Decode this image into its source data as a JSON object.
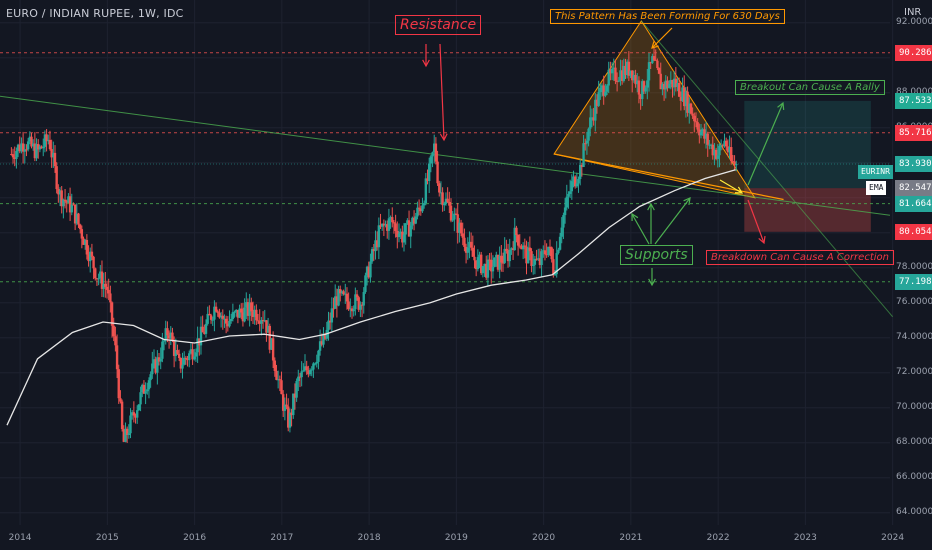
{
  "header": {
    "title": "EURO / INDIAN RUPEE, 1W, IDC",
    "currency": "INR"
  },
  "annotations": {
    "resistance": "Resistance",
    "pattern": "This Pattern Has Been Forming For 630 Days",
    "rally": "Breakout Can Cause A Rally",
    "supports": "Supports",
    "correction": "Breakdown Can Cause A Correction"
  },
  "price_tags": [
    {
      "label": "90.2866",
      "color": "#f23645"
    },
    {
      "label": "87.5339",
      "color": "#22ab94"
    },
    {
      "label": "85.7160",
      "color": "#f23645"
    },
    {
      "label": "83.9307",
      "color": "#26a69a"
    },
    {
      "label": "82.5477",
      "color": "#787b86"
    },
    {
      "label": "81.6647",
      "color": "#26a69a"
    },
    {
      "label": "80.0546",
      "color": "#f23645"
    },
    {
      "label": "77.1980",
      "color": "#26a69a"
    }
  ],
  "symbol_tag": "EURINR",
  "ema_tag": "EMA",
  "colors": {
    "background": "#131722",
    "up": "#26a69a",
    "down": "#ef5350",
    "ema": "#e6e6e6",
    "resistance_line": "#ef5350",
    "support_line": "#4caf50",
    "pattern": "#ff9800",
    "trendline": "#4caf50"
  },
  "chart_data": {
    "type": "candlestick",
    "title": "EURO / INDIAN RUPEE, 1W, IDC",
    "x_ticks": [
      "2014",
      "2015",
      "2016",
      "2017",
      "2018",
      "2019",
      "2020",
      "2021",
      "2022",
      "2023",
      "2024"
    ],
    "y_ticks": [
      "92.0000",
      "90.0000",
      "88.0000",
      "86.0000",
      "84.0000",
      "82.0000",
      "80.0000",
      "78.0000",
      "76.0000",
      "74.0000",
      "72.0000",
      "70.0000",
      "68.0000",
      "66.0000",
      "64.0000"
    ],
    "ylim": [
      63.3,
      93.3
    ],
    "xlim": [
      2013.85,
      2024.05
    ],
    "last_price": 83.9307,
    "horizontal_levels": [
      {
        "value": 90.2866,
        "style": "dashed",
        "color": "#ef5350"
      },
      {
        "value": 85.716,
        "style": "dashed",
        "color": "#ef5350"
      },
      {
        "value": 81.6647,
        "style": "dashed",
        "color": "#4caf50"
      },
      {
        "value": 77.198,
        "style": "dashed",
        "color": "#4caf50"
      }
    ],
    "close_path": [
      [
        2013.9,
        84.5
      ],
      [
        2014.05,
        85.2
      ],
      [
        2014.2,
        84.6
      ],
      [
        2014.33,
        85.4
      ],
      [
        2014.45,
        82.2
      ],
      [
        2014.6,
        81.4
      ],
      [
        2014.75,
        79.4
      ],
      [
        2014.88,
        77.6
      ],
      [
        2015.0,
        76.8
      ],
      [
        2015.1,
        73.0
      ],
      [
        2015.18,
        67.9
      ],
      [
        2015.3,
        69.6
      ],
      [
        2015.45,
        71.5
      ],
      [
        2015.58,
        72.7
      ],
      [
        2015.7,
        74.5
      ],
      [
        2015.82,
        72.4
      ],
      [
        2015.95,
        73.1
      ],
      [
        2016.1,
        74.3
      ],
      [
        2016.25,
        76.0
      ],
      [
        2016.35,
        74.8
      ],
      [
        2016.5,
        75.4
      ],
      [
        2016.65,
        75.6
      ],
      [
        2016.8,
        75.2
      ],
      [
        2016.9,
        73.0
      ],
      [
        2017.0,
        70.5
      ],
      [
        2017.08,
        69.1
      ],
      [
        2017.18,
        71.5
      ],
      [
        2017.35,
        72.6
      ],
      [
        2017.5,
        74.0
      ],
      [
        2017.62,
        76.3
      ],
      [
        2017.75,
        76.1
      ],
      [
        2017.9,
        76.0
      ],
      [
        2018.0,
        78.0
      ],
      [
        2018.12,
        80.1
      ],
      [
        2018.25,
        80.7
      ],
      [
        2018.38,
        79.8
      ],
      [
        2018.5,
        80.6
      ],
      [
        2018.6,
        81.6
      ],
      [
        2018.68,
        83.2
      ],
      [
        2018.75,
        85.0
      ],
      [
        2018.8,
        82.5
      ],
      [
        2018.9,
        81.6
      ],
      [
        2019.0,
        80.6
      ],
      [
        2019.1,
        79.5
      ],
      [
        2019.2,
        78.5
      ],
      [
        2019.35,
        77.9
      ],
      [
        2019.5,
        78.4
      ],
      [
        2019.6,
        78.8
      ],
      [
        2019.68,
        80.0
      ],
      [
        2019.8,
        78.7
      ],
      [
        2019.95,
        78.2
      ],
      [
        2020.05,
        79.3
      ],
      [
        2020.12,
        77.8
      ],
      [
        2020.2,
        80.5
      ],
      [
        2020.32,
        82.7
      ],
      [
        2020.42,
        83.7
      ],
      [
        2020.5,
        85.7
      ],
      [
        2020.6,
        87.4
      ],
      [
        2020.72,
        88.7
      ],
      [
        2020.85,
        89.1
      ],
      [
        2021.0,
        89.4
      ],
      [
        2021.12,
        88.0
      ],
      [
        2021.25,
        89.8
      ],
      [
        2021.35,
        88.4
      ],
      [
        2021.5,
        88.6
      ],
      [
        2021.62,
        87.7
      ],
      [
        2021.72,
        86.7
      ],
      [
        2021.82,
        85.6
      ],
      [
        2021.92,
        84.9
      ],
      [
        2022.0,
        84.5
      ],
      [
        2022.08,
        85.3
      ],
      [
        2022.15,
        84.0
      ],
      [
        2022.2,
        83.9
      ]
    ],
    "ema_path": [
      [
        2013.85,
        69.0
      ],
      [
        2014.2,
        72.8
      ],
      [
        2014.6,
        74.3
      ],
      [
        2014.95,
        74.9
      ],
      [
        2015.3,
        74.7
      ],
      [
        2015.65,
        73.9
      ],
      [
        2016.0,
        73.7
      ],
      [
        2016.4,
        74.1
      ],
      [
        2016.8,
        74.2
      ],
      [
        2017.2,
        73.9
      ],
      [
        2017.5,
        74.2
      ],
      [
        2017.9,
        74.9
      ],
      [
        2018.3,
        75.5
      ],
      [
        2018.7,
        76.0
      ],
      [
        2019.0,
        76.5
      ],
      [
        2019.4,
        77.0
      ],
      [
        2019.8,
        77.3
      ],
      [
        2020.1,
        77.6
      ],
      [
        2020.4,
        78.8
      ],
      [
        2020.75,
        80.3
      ],
      [
        2021.1,
        81.5
      ],
      [
        2021.5,
        82.4
      ],
      [
        2021.85,
        83.1
      ],
      [
        2022.2,
        83.6
      ]
    ]
  }
}
